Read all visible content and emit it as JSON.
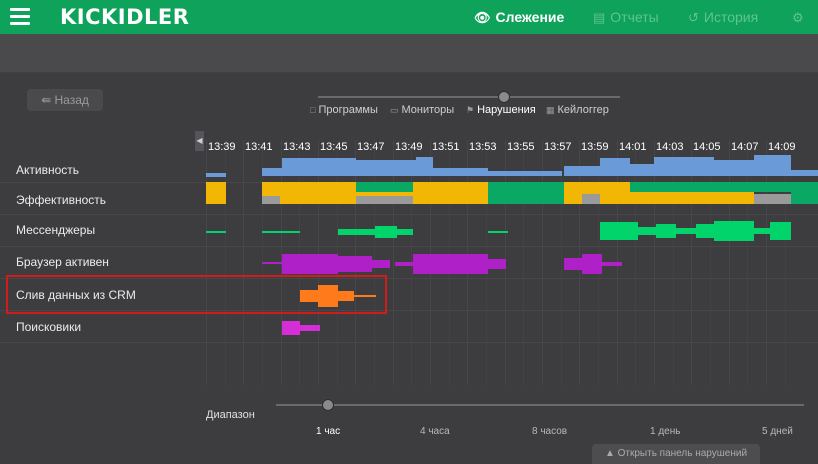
{
  "app": {
    "logo": "KICKIDLER",
    "nav": [
      {
        "label": "Слежение",
        "icon": "eye-icon"
      },
      {
        "label": "Отчеты",
        "icon": "report-icon"
      },
      {
        "label": "История",
        "icon": "history-icon"
      }
    ],
    "accent_color": "#0fa25a"
  },
  "controls": {
    "back_label": "Назад",
    "modes": [
      "Программы",
      "Мониторы",
      "Нарушения",
      "Кейлоггер"
    ],
    "active_mode": "Нарушения"
  },
  "timeline": {
    "times": [
      "13:39",
      "13:41",
      "13:43",
      "13:45",
      "13:47",
      "13:49",
      "13:51",
      "13:53",
      "13:55",
      "13:57",
      "13:59",
      "14:01",
      "14:03",
      "14:05",
      "14:07",
      "14:09"
    ],
    "rows": [
      {
        "label": "Активность",
        "colors": [
          "#6b9ad8"
        ]
      },
      {
        "label": "Эффективность",
        "colors": [
          "#f2b705",
          "#0aa865",
          "#9a9a9a"
        ]
      },
      {
        "label": "Мессенджеры",
        "colors": [
          "#00d46a"
        ]
      },
      {
        "label": "Браузер активен",
        "colors": [
          "#b020c8"
        ]
      },
      {
        "label": "Слив данных из CRM",
        "colors": [
          "#ff7a1a"
        ]
      },
      {
        "label": "Поисковики",
        "colors": [
          "#d62ed6"
        ]
      }
    ]
  },
  "range": {
    "label": "Диапазон",
    "options": [
      "1 час",
      "4 часа",
      "8 часов",
      "1 день",
      "5 дней"
    ],
    "selected": "1 час"
  },
  "panel_button": "Открыть панель нарушений"
}
